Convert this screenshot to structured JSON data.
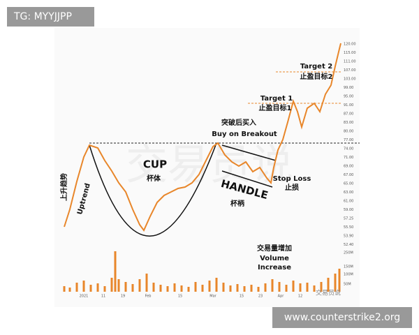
{
  "header": {
    "tag": "TG: MYYJJPP"
  },
  "annotations": {
    "uptrend_cn": "上升趋势",
    "uptrend_en": "Uptrend",
    "cup_en": "CUP",
    "cup_cn": "杯体",
    "handle_en": "HANDLE",
    "handle_cn": "杯柄",
    "breakout_cn": "突破后买入",
    "breakout_en": "Buy on Breakout",
    "stop_en": "Stop Loss",
    "stop_cn": "止损",
    "target1_en": "Target 1",
    "target1_cn": "止盈目标1",
    "target2_en": "Target 2",
    "target2_cn": "止盈目标2",
    "volume_cn": "交易量增加",
    "volume_en1": "Volume",
    "volume_en2": "Increase"
  },
  "price_axis": [
    "120.00",
    "115.00",
    "111.00",
    "107.00",
    "103.00",
    "99.00",
    "95.00",
    "91.00",
    "87.00",
    "83.00",
    "80.00",
    "77.00",
    "74.00",
    "71.00",
    "69.00",
    "67.00",
    "65.00",
    "63.00",
    "61.00",
    "59.00",
    "57.25",
    "55.50",
    "53.90",
    "52.40"
  ],
  "volume_axis": [
    "250M",
    "150M",
    "100M",
    "50M"
  ],
  "date_axis": [
    "2021",
    "11",
    "19",
    "Feb",
    "15",
    "Mar",
    "15",
    "23",
    "Apr",
    "12"
  ],
  "watermarks": {
    "center": "交易员说",
    "corner": "交易员说",
    "site": "www.counterstrike2.org"
  }
}
